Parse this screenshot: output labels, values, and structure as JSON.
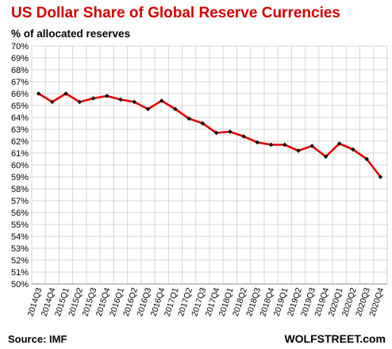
{
  "header": {
    "title": "US Dollar Share of Global  Reserve Currencies",
    "subtitle": "% of allocated reserves"
  },
  "footer": {
    "source": "Source: IMF",
    "brand": "WOLFSTREET.com"
  },
  "colors": {
    "title": "#d40000",
    "line": "#e00000",
    "marker": "#000000",
    "grid": "#d4d4d4"
  },
  "chart_data": {
    "type": "line",
    "title": "US Dollar Share of Global  Reserve Currencies",
    "ylabel": "% of allocated reserves",
    "xlabel": "",
    "ylim": [
      50,
      70
    ],
    "yticks": [
      "50%",
      "51%",
      "52%",
      "53%",
      "54%",
      "55%",
      "56%",
      "57%",
      "58%",
      "59%",
      "60%",
      "61%",
      "62%",
      "63%",
      "64%",
      "65%",
      "66%",
      "67%",
      "68%",
      "69%",
      "70%"
    ],
    "grid": true,
    "markers": true,
    "categories": [
      "2014Q3",
      "2014Q4",
      "2015Q1",
      "2015Q2",
      "2015Q3",
      "2015Q4",
      "2016Q1",
      "2016Q2",
      "2016Q3",
      "2016Q4",
      "2017Q1",
      "2017Q2",
      "2017Q3",
      "2017Q4",
      "2018Q1",
      "2018Q2",
      "2018Q3",
      "2018Q4",
      "2019Q1",
      "2019Q2",
      "2019Q3",
      "2019Q4",
      "2020Q1",
      "2020Q2",
      "2020Q3",
      "2020Q4"
    ],
    "series": [
      {
        "values": [
          66.0,
          65.3,
          66.0,
          65.3,
          65.6,
          65.8,
          65.5,
          65.3,
          64.7,
          65.4,
          64.7,
          63.9,
          63.5,
          62.7,
          62.8,
          62.4,
          61.9,
          61.7,
          61.7,
          61.2,
          61.6,
          60.7,
          61.8,
          61.3,
          60.5,
          59.0
        ]
      }
    ]
  }
}
